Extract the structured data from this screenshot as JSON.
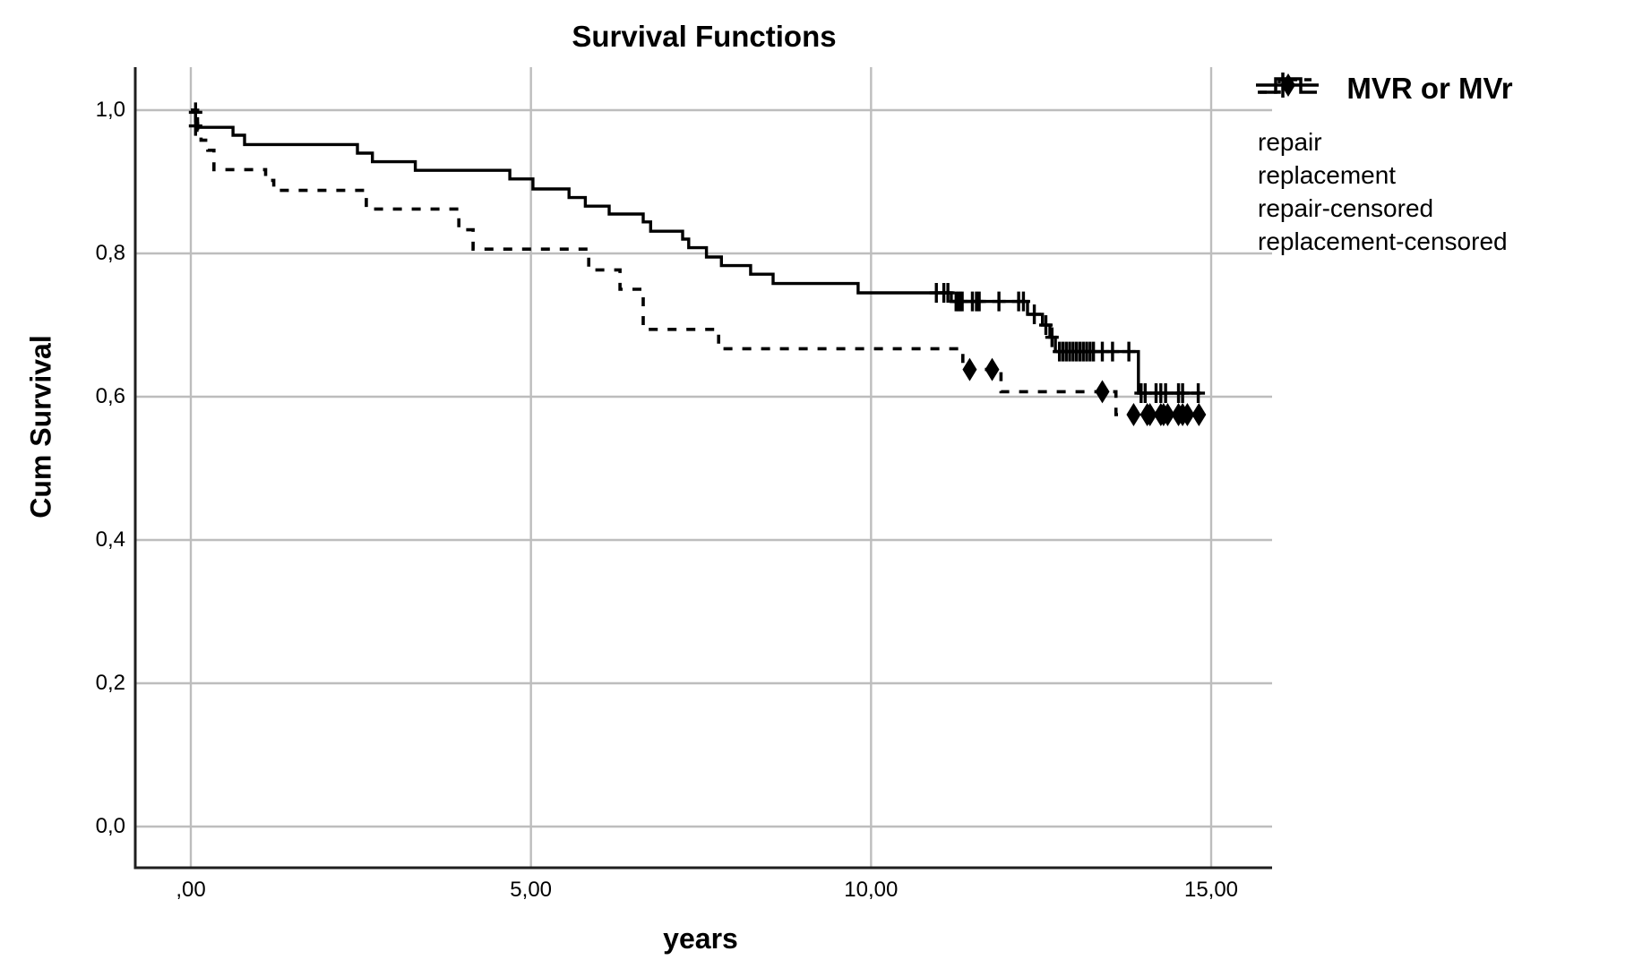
{
  "chart_data": {
    "type": "line",
    "title": "Survival Functions",
    "xlabel": "years",
    "ylabel": "Cum Survival",
    "grid": true,
    "xlim": [
      0,
      15
    ],
    "ylim": [
      0.0,
      1.0
    ],
    "x_ticks": [
      {
        "value": 0,
        "label": ",00"
      },
      {
        "value": 5,
        "label": "5,00"
      },
      {
        "value": 10,
        "label": "10,00"
      },
      {
        "value": 15,
        "label": "15,00"
      }
    ],
    "y_ticks": [
      {
        "value": 1.0,
        "label": "1,0"
      },
      {
        "value": 0.8,
        "label": "0,8"
      },
      {
        "value": 0.6,
        "label": "0,6"
      },
      {
        "value": 0.4,
        "label": "0,4"
      },
      {
        "value": 0.2,
        "label": "0,2"
      },
      {
        "value": 0.0,
        "label": "0,0"
      }
    ],
    "series": [
      {
        "name": "repair",
        "style": "dashed",
        "end_t": 14.85,
        "steps": [
          [
            0,
            1.0
          ],
          [
            0.1,
            0.972
          ],
          [
            0.15,
            0.958
          ],
          [
            0.25,
            0.944
          ],
          [
            0.34,
            0.917
          ],
          [
            1.1,
            0.902
          ],
          [
            1.22,
            0.888
          ],
          [
            2.58,
            0.862
          ],
          [
            3.94,
            0.833
          ],
          [
            4.15,
            0.806
          ],
          [
            5.85,
            0.777
          ],
          [
            6.31,
            0.75
          ],
          [
            6.65,
            0.694
          ],
          [
            7.76,
            0.667
          ],
          [
            11.35,
            0.638
          ],
          [
            11.91,
            0.607
          ],
          [
            13.6,
            0.575
          ]
        ]
      },
      {
        "name": "replacement",
        "style": "solid",
        "end_t": 14.85,
        "steps": [
          [
            0,
            1.0
          ],
          [
            0.07,
            0.988
          ],
          [
            0.1,
            0.976
          ],
          [
            0.62,
            0.965
          ],
          [
            0.79,
            0.952
          ],
          [
            2.45,
            0.94
          ],
          [
            2.67,
            0.928
          ],
          [
            3.3,
            0.916
          ],
          [
            4.69,
            0.904
          ],
          [
            5.03,
            0.89
          ],
          [
            5.56,
            0.878
          ],
          [
            5.8,
            0.866
          ],
          [
            6.15,
            0.855
          ],
          [
            6.65,
            0.844
          ],
          [
            6.76,
            0.831
          ],
          [
            7.23,
            0.82
          ],
          [
            7.32,
            0.808
          ],
          [
            7.58,
            0.795
          ],
          [
            7.8,
            0.783
          ],
          [
            8.23,
            0.771
          ],
          [
            8.56,
            0.758
          ],
          [
            9.81,
            0.745
          ],
          [
            11.18,
            0.733
          ],
          [
            12.3,
            0.715
          ],
          [
            12.52,
            0.7
          ],
          [
            12.63,
            0.683
          ],
          [
            12.71,
            0.663
          ],
          [
            13.93,
            0.605
          ]
        ]
      }
    ],
    "censored": [
      {
        "name": "repair-censored",
        "marker": "diamond",
        "points": [
          [
            11.45,
            0.638
          ],
          [
            11.78,
            0.638
          ],
          [
            13.4,
            0.607
          ],
          [
            13.86,
            0.575
          ],
          [
            14.06,
            0.575
          ],
          [
            14.1,
            0.575
          ],
          [
            14.26,
            0.575
          ],
          [
            14.3,
            0.575
          ],
          [
            14.36,
            0.575
          ],
          [
            14.52,
            0.575
          ],
          [
            14.58,
            0.575
          ],
          [
            14.65,
            0.575
          ],
          [
            14.82,
            0.575
          ]
        ]
      },
      {
        "name": "replacement-censored",
        "marker": "plus",
        "points": [
          [
            0.07,
            0.997
          ],
          [
            0.07,
            0.978
          ],
          [
            10.96,
            0.745
          ],
          [
            11.07,
            0.745
          ],
          [
            11.13,
            0.745
          ],
          [
            11.25,
            0.733
          ],
          [
            11.28,
            0.733
          ],
          [
            11.31,
            0.733
          ],
          [
            11.34,
            0.733
          ],
          [
            11.49,
            0.733
          ],
          [
            11.55,
            0.733
          ],
          [
            11.59,
            0.733
          ],
          [
            11.88,
            0.733
          ],
          [
            12.17,
            0.733
          ],
          [
            12.24,
            0.733
          ],
          [
            12.4,
            0.715
          ],
          [
            12.57,
            0.7
          ],
          [
            12.66,
            0.683
          ],
          [
            12.77,
            0.663
          ],
          [
            12.82,
            0.663
          ],
          [
            12.87,
            0.663
          ],
          [
            12.92,
            0.663
          ],
          [
            12.97,
            0.663
          ],
          [
            13.02,
            0.663
          ],
          [
            13.07,
            0.663
          ],
          [
            13.12,
            0.663
          ],
          [
            13.17,
            0.663
          ],
          [
            13.22,
            0.663
          ],
          [
            13.27,
            0.663
          ],
          [
            13.4,
            0.663
          ],
          [
            13.55,
            0.663
          ],
          [
            13.79,
            0.663
          ],
          [
            13.97,
            0.605
          ],
          [
            14.03,
            0.605
          ],
          [
            14.19,
            0.605
          ],
          [
            14.26,
            0.605
          ],
          [
            14.33,
            0.605
          ],
          [
            14.52,
            0.605
          ],
          [
            14.58,
            0.605
          ],
          [
            14.81,
            0.605
          ]
        ]
      }
    ],
    "colors": {
      "curve": "#000000",
      "grid": "#bdbdbd",
      "axis": "#1f1f1f",
      "background": "#ffffff"
    }
  },
  "legend": {
    "title": "MVR or MVr",
    "items": [
      {
        "label": "repair"
      },
      {
        "label": "replacement"
      },
      {
        "label": "repair-censored"
      },
      {
        "label": "replacement-censored"
      }
    ]
  }
}
